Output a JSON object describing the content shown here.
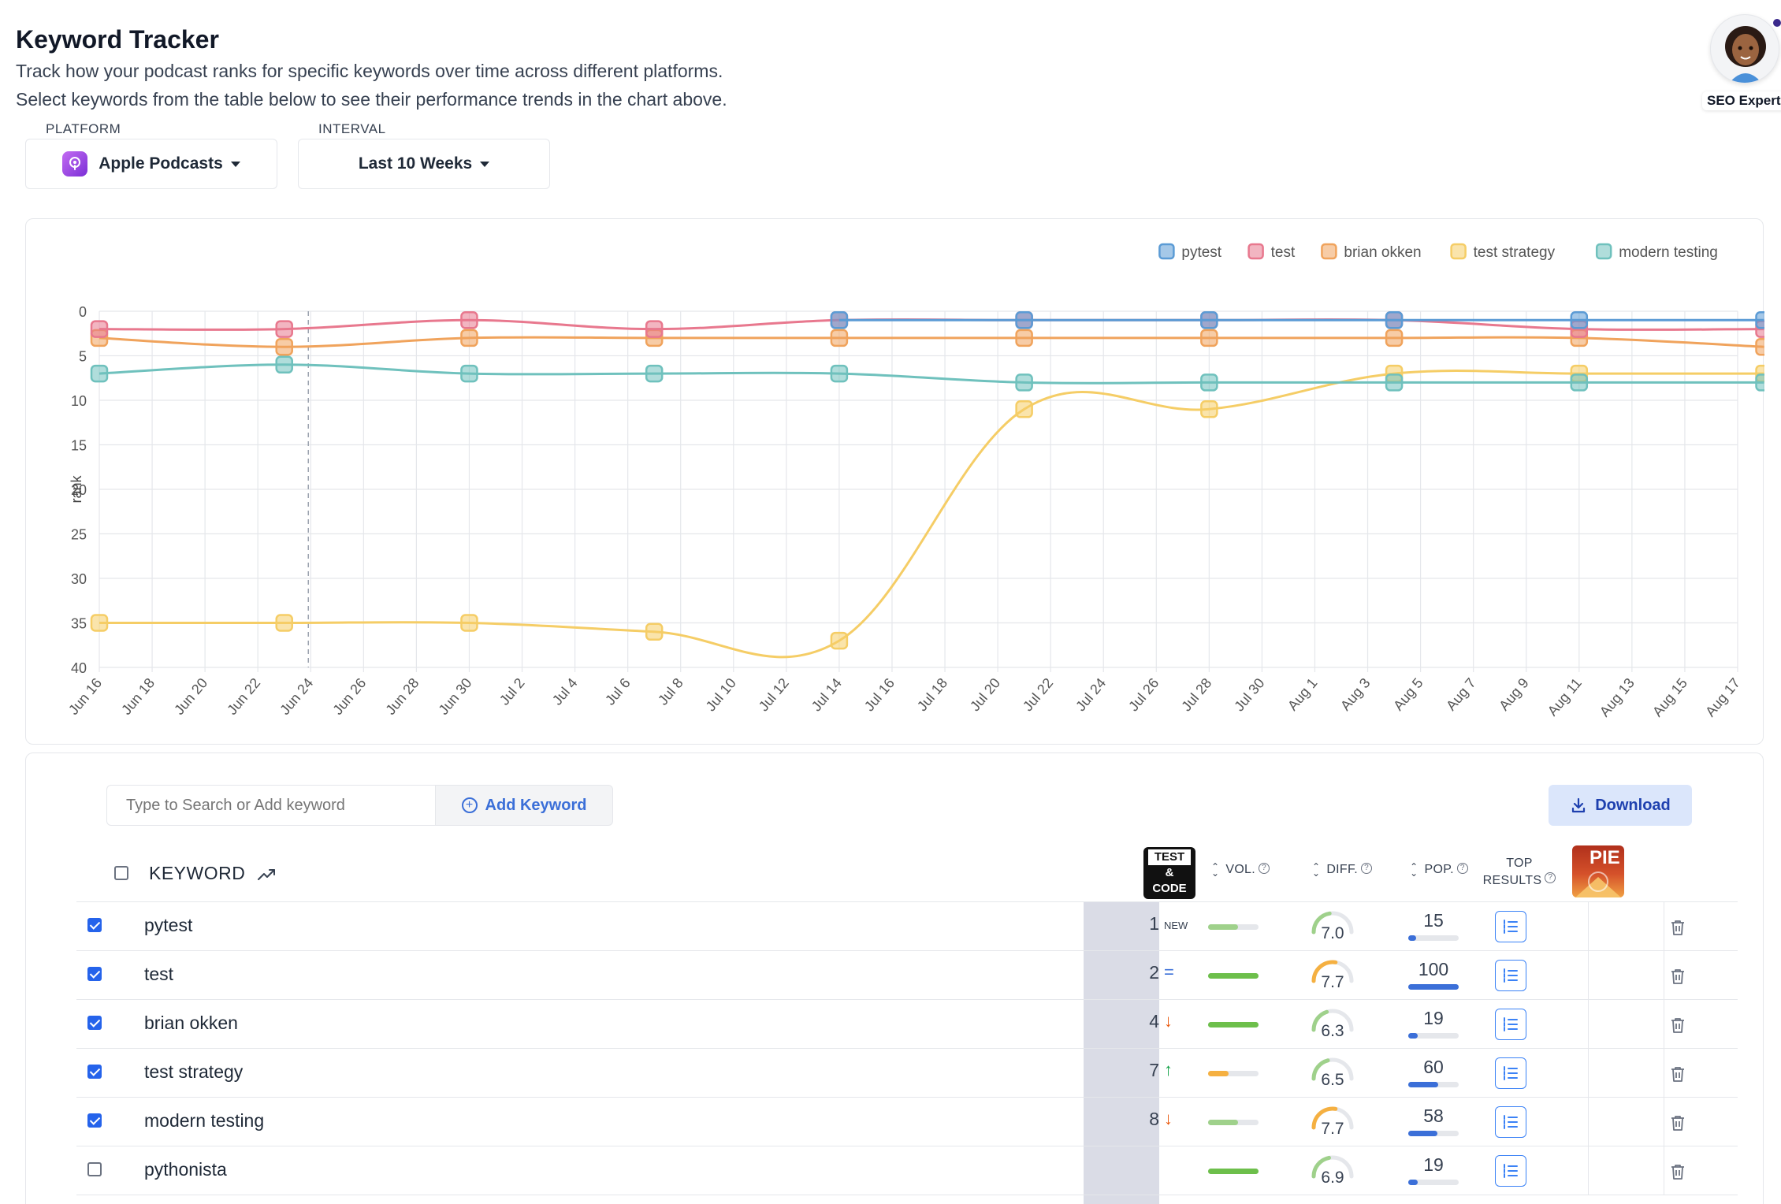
{
  "header": {
    "title": "Keyword Tracker",
    "desc1": "Track how your podcast ranks for specific keywords over time across different platforms.",
    "desc2": "Select keywords from the table below to see their performance trends in the chart above."
  },
  "avatar": {
    "label": "SEO Expert"
  },
  "filters": {
    "platform_label": "PLATFORM",
    "platform_value": "Apple Podcasts",
    "interval_label": "INTERVAL",
    "interval_value": "Last 10 Weeks"
  },
  "chart_data": {
    "type": "line",
    "ylabel": "rank",
    "xlabel": "",
    "ylim": [
      0,
      40
    ],
    "y_reversed": true,
    "yticks": [
      0,
      5,
      10,
      15,
      20,
      25,
      30,
      35,
      40
    ],
    "xticks": [
      "Jun 16",
      "Jun 18",
      "Jun 20",
      "Jun 22",
      "Jun 24",
      "Jun 26",
      "Jun 28",
      "Jun 30",
      "Jul 2",
      "Jul 4",
      "Jul 6",
      "Jul 8",
      "Jul 10",
      "Jul 12",
      "Jul 14",
      "Jul 16",
      "Jul 18",
      "Jul 20",
      "Jul 22",
      "Jul 24",
      "Jul 26",
      "Jul 28",
      "Jul 30",
      "Aug 1",
      "Aug 3",
      "Aug 5",
      "Aug 7",
      "Aug 9",
      "Aug 11",
      "Aug 13",
      "Aug 15",
      "Aug 17"
    ],
    "legend_position": "top-right",
    "grid": true,
    "x": [
      "Jun 16",
      "Jun 23",
      "Jun 30",
      "Jul 7",
      "Jul 14",
      "Jul 21",
      "Jul 28",
      "Aug 4",
      "Aug 11",
      "Aug 18"
    ],
    "series": [
      {
        "name": "pytest",
        "color": "#5b9bd5",
        "values": [
          null,
          null,
          null,
          null,
          1,
          1,
          1,
          1,
          1,
          1
        ]
      },
      {
        "name": "test",
        "color": "#e8788e",
        "values": [
          2,
          2,
          1,
          2,
          1,
          1,
          1,
          1,
          2,
          2
        ]
      },
      {
        "name": "brian okken",
        "color": "#f0a35c",
        "values": [
          3,
          4,
          3,
          3,
          3,
          3,
          3,
          3,
          3,
          4
        ]
      },
      {
        "name": "test strategy",
        "color": "#f5cd66",
        "values": [
          35,
          35,
          35,
          36,
          37,
          11,
          11,
          7,
          7,
          7
        ]
      },
      {
        "name": "modern testing",
        "color": "#6fc1bd",
        "values": [
          7,
          6,
          7,
          7,
          7,
          8,
          8,
          8,
          8,
          8
        ]
      }
    ]
  },
  "toolbar": {
    "search_placeholder": "Type to Search or Add keyword",
    "add_label": "Add Keyword",
    "download_label": "Download"
  },
  "table": {
    "col_keyword": "KEYWORD",
    "col_vol": "VOL.",
    "col_diff": "DIFF.",
    "col_pop": "POP.",
    "col_top1": "TOP",
    "col_top2": "RESULTS",
    "logo_testcode": [
      "TEST",
      "&",
      "CODE"
    ],
    "logo_pie": "PIE",
    "rows": [
      {
        "keyword": "pytest",
        "checked": true,
        "rank": "1",
        "indicator": "NEW",
        "vol": 0.6,
        "vol_color": "#9fd18b",
        "diff": "7.0",
        "diff_frac": 0.45,
        "diff_color": "#9fd18b",
        "pop": "15",
        "pop_frac": 0.15
      },
      {
        "keyword": "test",
        "checked": true,
        "rank": "2",
        "indicator": "=",
        "vol": 1.0,
        "vol_color": "#6dbf4b",
        "diff": "7.7",
        "diff_frac": 0.55,
        "diff_color": "#f5b041",
        "pop": "100",
        "pop_frac": 1.0
      },
      {
        "keyword": "brian okken",
        "checked": true,
        "rank": "4",
        "indicator": "↓",
        "vol": 1.0,
        "vol_color": "#6dbf4b",
        "diff": "6.3",
        "diff_frac": 0.4,
        "diff_color": "#9fd18b",
        "pop": "19",
        "pop_frac": 0.19
      },
      {
        "keyword": "test strategy",
        "checked": true,
        "rank": "7",
        "indicator": "↑",
        "vol": 0.4,
        "vol_color": "#f5b041",
        "diff": "6.5",
        "diff_frac": 0.42,
        "diff_color": "#9fd18b",
        "pop": "60",
        "pop_frac": 0.6
      },
      {
        "keyword": "modern testing",
        "checked": true,
        "rank": "8",
        "indicator": "↓",
        "vol": 0.6,
        "vol_color": "#9fd18b",
        "diff": "7.7",
        "diff_frac": 0.55,
        "diff_color": "#f5b041",
        "pop": "58",
        "pop_frac": 0.58
      },
      {
        "keyword": "pythonista",
        "checked": false,
        "rank": "",
        "indicator": "",
        "vol": 1.0,
        "vol_color": "#6dbf4b",
        "diff": "6.9",
        "diff_frac": 0.44,
        "diff_color": "#9fd18b",
        "pop": "19",
        "pop_frac": 0.19
      }
    ]
  }
}
